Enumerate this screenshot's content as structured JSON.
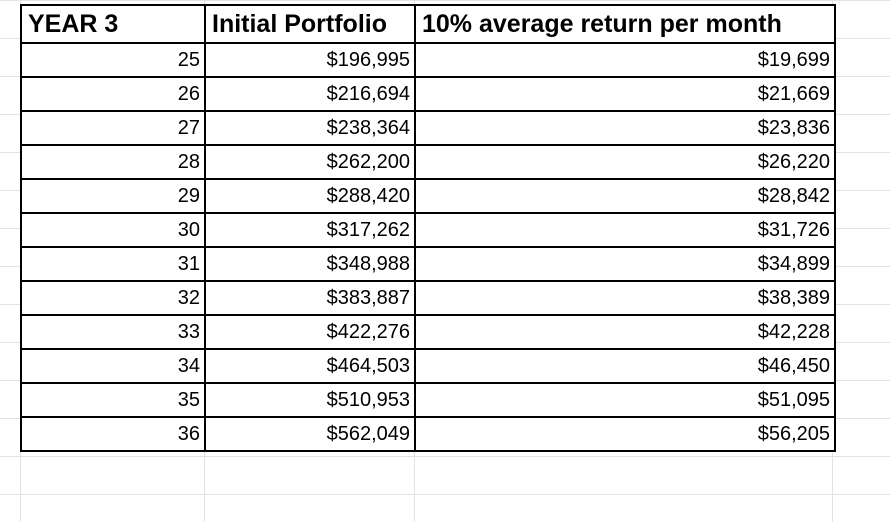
{
  "table": {
    "headers": [
      "YEAR 3",
      "Initial Portfolio",
      "10% average return per month"
    ],
    "rows": [
      [
        "25",
        "$196,995",
        "$19,699"
      ],
      [
        "26",
        "$216,694",
        "$21,669"
      ],
      [
        "27",
        "$238,364",
        "$23,836"
      ],
      [
        "28",
        "$262,200",
        "$26,220"
      ],
      [
        "29",
        "$288,420",
        "$28,842"
      ],
      [
        "30",
        "$317,262",
        "$31,726"
      ],
      [
        "31",
        "$348,988",
        "$34,899"
      ],
      [
        "32",
        "$383,887",
        "$38,389"
      ],
      [
        "33",
        "$422,276",
        "$42,228"
      ],
      [
        "34",
        "$464,503",
        "$46,450"
      ],
      [
        "35",
        "$510,953",
        "$51,095"
      ],
      [
        "36",
        "$562,049",
        "$56,205"
      ]
    ]
  }
}
